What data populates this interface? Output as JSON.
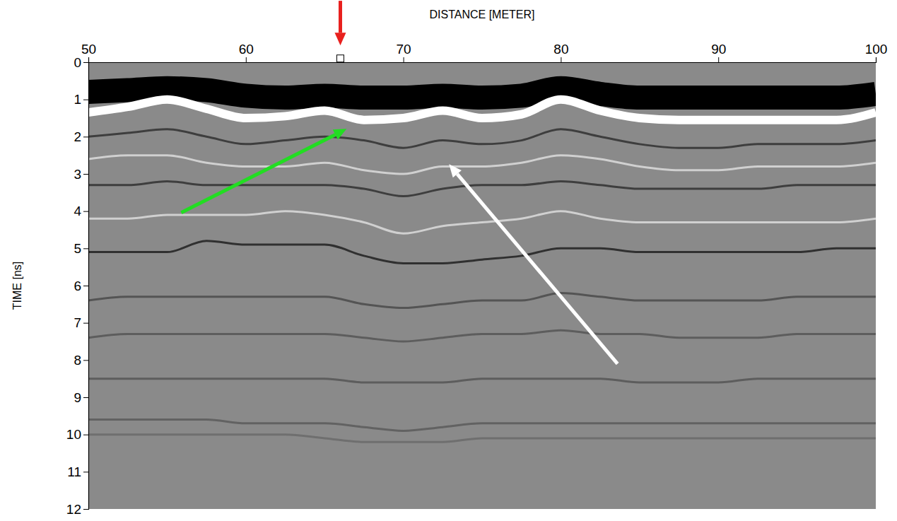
{
  "chart_data": {
    "type": "radargram",
    "xlabel": "DISTANCE [METER]",
    "ylabel": "TIME [ns]",
    "xlim": [
      50,
      100
    ],
    "xticks": [
      50,
      60,
      70,
      80,
      90,
      100
    ],
    "ylim": [
      0,
      12
    ],
    "yticks": [
      0,
      1,
      2,
      3,
      4,
      5,
      6,
      7,
      8,
      9,
      10,
      11,
      12
    ],
    "x": [
      50,
      52.5,
      55,
      57.5,
      60,
      62.5,
      65,
      67.5,
      70,
      72.5,
      75,
      77.5,
      80,
      82.5,
      85,
      87.5,
      90,
      92.5,
      95,
      97.5,
      100
    ],
    "series": [
      {
        "color": "#000000",
        "line_style": "thick",
        "values": [
          0.8,
          0.75,
          0.7,
          0.75,
          0.9,
          0.95,
          0.9,
          0.95,
          0.95,
          0.9,
          0.95,
          0.9,
          0.7,
          0.85,
          0.95,
          0.95,
          0.95,
          0.95,
          0.95,
          0.95,
          0.85
        ]
      },
      {
        "color": "#ffffff",
        "line_style": "medium",
        "values": [
          1.35,
          1.2,
          1.0,
          1.25,
          1.5,
          1.45,
          1.3,
          1.55,
          1.5,
          1.3,
          1.5,
          1.4,
          1.0,
          1.3,
          1.5,
          1.55,
          1.55,
          1.55,
          1.55,
          1.55,
          1.35
        ]
      },
      {
        "color": "#303030",
        "line_style": "thin",
        "values": [
          2.0,
          1.9,
          1.8,
          2.0,
          2.2,
          2.1,
          2.0,
          2.1,
          2.3,
          2.1,
          2.2,
          2.1,
          1.8,
          2.0,
          2.2,
          2.3,
          2.3,
          2.2,
          2.2,
          2.2,
          2.1
        ]
      },
      {
        "color": "#dcdcdc",
        "line_style": "thin",
        "values": [
          2.6,
          2.5,
          2.5,
          2.7,
          2.8,
          2.8,
          2.7,
          2.9,
          3.0,
          2.8,
          2.8,
          2.7,
          2.5,
          2.6,
          2.8,
          2.9,
          2.9,
          2.8,
          2.8,
          2.8,
          2.7
        ]
      },
      {
        "color": "#303030",
        "line_style": "thin",
        "values": [
          3.3,
          3.3,
          3.2,
          3.3,
          3.3,
          3.3,
          3.3,
          3.4,
          3.6,
          3.4,
          3.3,
          3.3,
          3.2,
          3.3,
          3.4,
          3.4,
          3.4,
          3.4,
          3.3,
          3.3,
          3.3
        ]
      },
      {
        "color": "#dcdcdc",
        "line_style": "thin",
        "values": [
          4.2,
          4.2,
          4.1,
          4.1,
          4.1,
          4.0,
          4.1,
          4.3,
          4.6,
          4.4,
          4.3,
          4.2,
          4.0,
          4.2,
          4.3,
          4.3,
          4.3,
          4.3,
          4.3,
          4.3,
          4.2
        ]
      },
      {
        "color": "#202020",
        "line_style": "thin",
        "values": [
          5.1,
          5.1,
          5.1,
          4.8,
          4.9,
          4.9,
          4.9,
          5.2,
          5.4,
          5.4,
          5.3,
          5.2,
          5.0,
          5.0,
          5.1,
          5.1,
          5.1,
          5.1,
          5.1,
          5.0,
          5.0
        ]
      },
      {
        "color": "#4a4a4a",
        "line_style": "thin",
        "values": [
          6.4,
          6.3,
          6.3,
          6.3,
          6.3,
          6.3,
          6.3,
          6.5,
          6.6,
          6.5,
          6.4,
          6.4,
          6.2,
          6.3,
          6.4,
          6.4,
          6.4,
          6.4,
          6.3,
          6.3,
          6.3
        ]
      },
      {
        "color": "#555555",
        "line_style": "thin",
        "values": [
          7.4,
          7.3,
          7.3,
          7.3,
          7.3,
          7.3,
          7.3,
          7.4,
          7.5,
          7.4,
          7.3,
          7.3,
          7.2,
          7.3,
          7.3,
          7.4,
          7.4,
          7.4,
          7.3,
          7.3,
          7.3
        ]
      },
      {
        "color": "#555555",
        "line_style": "thin",
        "values": [
          8.5,
          8.5,
          8.5,
          8.5,
          8.5,
          8.5,
          8.5,
          8.6,
          8.6,
          8.6,
          8.5,
          8.5,
          8.5,
          8.5,
          8.6,
          8.6,
          8.6,
          8.5,
          8.5,
          8.5,
          8.5
        ]
      },
      {
        "color": "#5a5a5a",
        "line_style": "thin",
        "values": [
          9.6,
          9.6,
          9.6,
          9.6,
          9.7,
          9.7,
          9.7,
          9.8,
          9.9,
          9.8,
          9.7,
          9.7,
          9.7,
          9.7,
          9.7,
          9.7,
          9.7,
          9.7,
          9.7,
          9.7,
          9.7
        ]
      },
      {
        "color": "#6a6a6a",
        "line_style": "thin",
        "values": [
          10.0,
          10.0,
          10.0,
          10.0,
          10.0,
          10.0,
          10.1,
          10.2,
          10.2,
          10.2,
          10.1,
          10.1,
          10.1,
          10.1,
          10.1,
          10.1,
          10.1,
          10.1,
          10.1,
          10.1,
          10.1
        ]
      }
    ],
    "annotations": [
      {
        "type": "arrow",
        "color": "#e8201e",
        "x": [
          66,
          66
        ],
        "y": [
          -1.65,
          -0.45
        ]
      },
      {
        "type": "arrow",
        "color": "#22dd22",
        "x": [
          55.9,
          66.4
        ],
        "y": [
          4.04,
          1.79
        ]
      },
      {
        "type": "arrow",
        "color": "#ffffff",
        "x": [
          83.6,
          72.9
        ],
        "y": [
          8.1,
          2.74
        ]
      },
      {
        "type": "marker",
        "marker": "square",
        "color": "#000000",
        "x": 66,
        "y": -0.1
      }
    ]
  }
}
